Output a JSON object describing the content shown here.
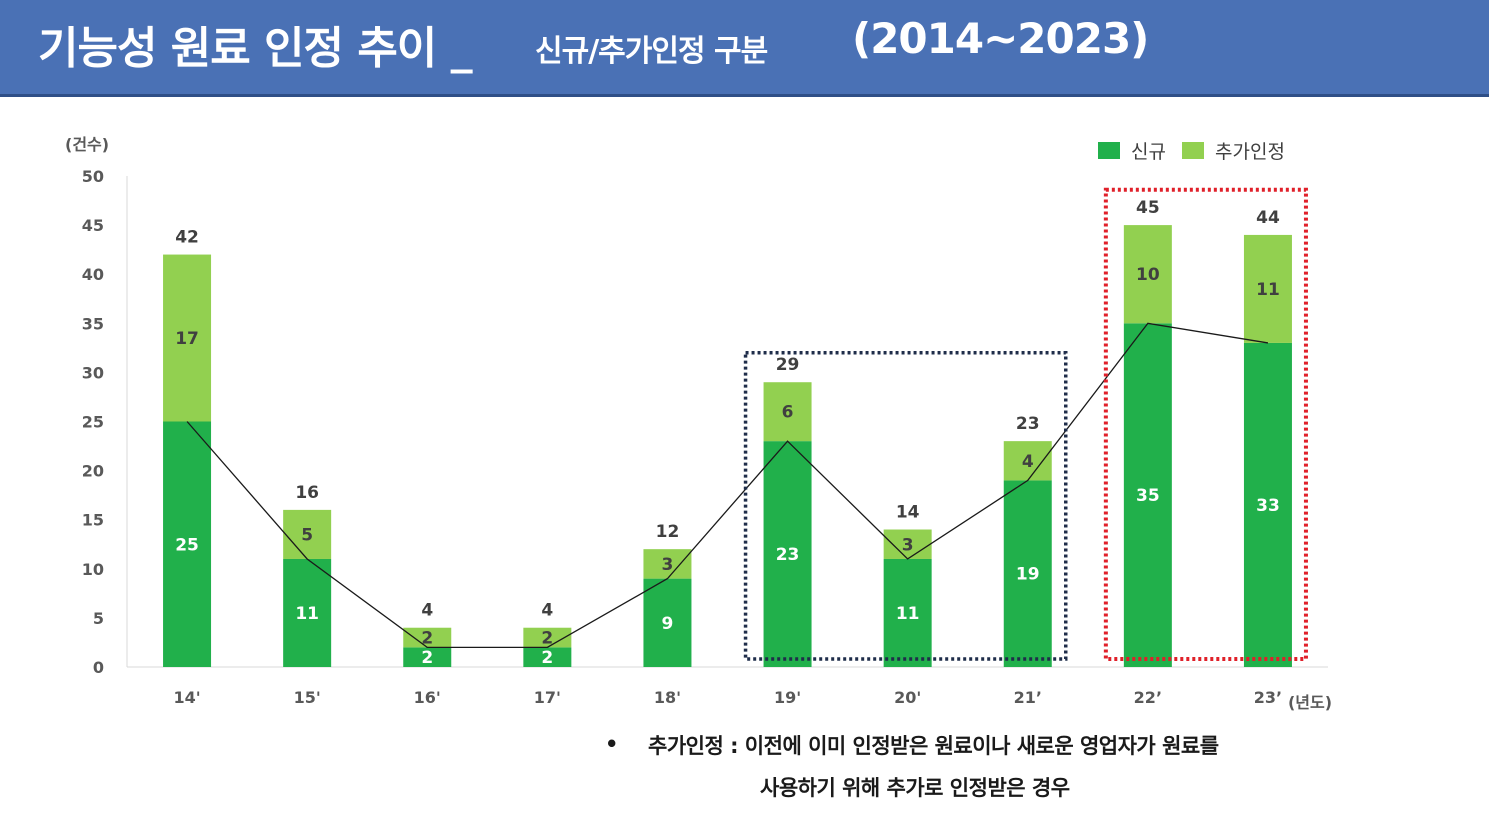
{
  "header": {
    "title_main": "기능성 원료 인정 추이 _",
    "title_sub": "신규/추가인정 구분",
    "title_years": "(2014~2023)"
  },
  "chart_data": {
    "type": "bar",
    "stacked": true,
    "title": "기능성 원료 인정 추이 _ 신규/추가인정 구분 (2014~2023)",
    "ylabel": "(건수)",
    "xlabel": "(년도)",
    "ylim": [
      0,
      50
    ],
    "yticks": [
      0,
      5,
      10,
      15,
      20,
      25,
      30,
      35,
      40,
      45,
      50
    ],
    "categories": [
      "14'",
      "15'",
      "16'",
      "17'",
      "18'",
      "19'",
      "20'",
      "21’",
      "22’",
      "23’"
    ],
    "series": [
      {
        "name": "신규",
        "values": [
          25,
          11,
          2,
          2,
          9,
          23,
          11,
          19,
          35,
          33
        ],
        "color": "#21b04b"
      },
      {
        "name": "추가인정",
        "values": [
          17,
          5,
          2,
          2,
          3,
          6,
          3,
          4,
          10,
          11
        ],
        "color": "#92d050"
      }
    ],
    "totals": [
      42,
      16,
      4,
      4,
      12,
      29,
      14,
      23,
      45,
      44
    ],
    "trend_line_series": "신규",
    "highlight_boxes": [
      {
        "from": "19'",
        "to": "21’",
        "style": "dotted",
        "color": "#1f2d4a"
      },
      {
        "from": "22’",
        "to": "23’",
        "style": "dotted",
        "color": "#e0202a"
      }
    ],
    "legend_position": "top-right"
  },
  "note": {
    "bullet": "•",
    "line1": "추가인정 : 이전에 이미 인정받은 원료이나 새로운 영업자가 원료를",
    "line2": "사용하기 위해 추가로 인정받은 경우"
  },
  "colors": {
    "header_bg": "#4a71b5",
    "new": "#21b04b",
    "added": "#92d050"
  }
}
